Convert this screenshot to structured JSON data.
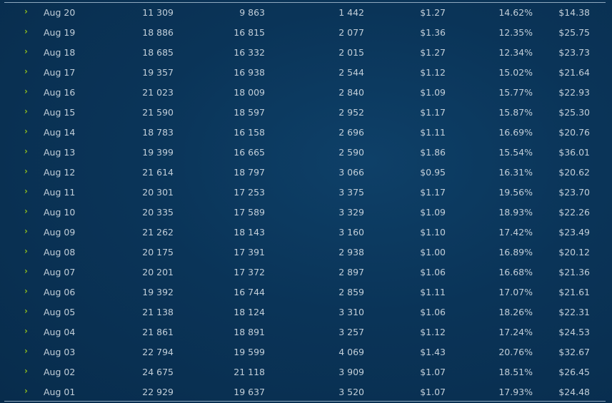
{
  "colors": {
    "background": "#0a3458",
    "text": "#c3cfd9",
    "chevron": "#8cbc1e",
    "divider": "#8fa9bf"
  },
  "rows": [
    {
      "date": "Aug 20",
      "c1": "11 309",
      "c2": "9 863",
      "c3": "1 442",
      "c4": "$1.27",
      "c5": "14.62%",
      "c6": "$14.38"
    },
    {
      "date": "Aug 19",
      "c1": "18 886",
      "c2": "16 815",
      "c3": "2 077",
      "c4": "$1.36",
      "c5": "12.35%",
      "c6": "$25.75"
    },
    {
      "date": "Aug 18",
      "c1": "18 685",
      "c2": "16 332",
      "c3": "2 015",
      "c4": "$1.27",
      "c5": "12.34%",
      "c6": "$23.73"
    },
    {
      "date": "Aug 17",
      "c1": "19 357",
      "c2": "16 938",
      "c3": "2 544",
      "c4": "$1.12",
      "c5": "15.02%",
      "c6": "$21.64"
    },
    {
      "date": "Aug 16",
      "c1": "21 023",
      "c2": "18 009",
      "c3": "2 840",
      "c4": "$1.09",
      "c5": "15.77%",
      "c6": "$22.93"
    },
    {
      "date": "Aug 15",
      "c1": "21 590",
      "c2": "18 597",
      "c3": "2 952",
      "c4": "$1.17",
      "c5": "15.87%",
      "c6": "$25.30"
    },
    {
      "date": "Aug 14",
      "c1": "18 783",
      "c2": "16 158",
      "c3": "2 696",
      "c4": "$1.11",
      "c5": "16.69%",
      "c6": "$20.76"
    },
    {
      "date": "Aug 13",
      "c1": "19 399",
      "c2": "16 665",
      "c3": "2 590",
      "c4": "$1.86",
      "c5": "15.54%",
      "c6": "$36.01"
    },
    {
      "date": "Aug 12",
      "c1": "21 614",
      "c2": "18 797",
      "c3": "3 066",
      "c4": "$0.95",
      "c5": "16.31%",
      "c6": "$20.62"
    },
    {
      "date": "Aug 11",
      "c1": "20 301",
      "c2": "17 253",
      "c3": "3 375",
      "c4": "$1.17",
      "c5": "19.56%",
      "c6": "$23.70"
    },
    {
      "date": "Aug 10",
      "c1": "20 335",
      "c2": "17 589",
      "c3": "3 329",
      "c4": "$1.09",
      "c5": "18.93%",
      "c6": "$22.26"
    },
    {
      "date": "Aug 09",
      "c1": "21 262",
      "c2": "18 143",
      "c3": "3 160",
      "c4": "$1.10",
      "c5": "17.42%",
      "c6": "$23.49"
    },
    {
      "date": "Aug 08",
      "c1": "20 175",
      "c2": "17 391",
      "c3": "2 938",
      "c4": "$1.00",
      "c5": "16.89%",
      "c6": "$20.12"
    },
    {
      "date": "Aug 07",
      "c1": "20 201",
      "c2": "17 372",
      "c3": "2 897",
      "c4": "$1.06",
      "c5": "16.68%",
      "c6": "$21.36"
    },
    {
      "date": "Aug 06",
      "c1": "19 392",
      "c2": "16 744",
      "c3": "2 859",
      "c4": "$1.11",
      "c5": "17.07%",
      "c6": "$21.61"
    },
    {
      "date": "Aug 05",
      "c1": "21 138",
      "c2": "18 124",
      "c3": "3 310",
      "c4": "$1.06",
      "c5": "18.26%",
      "c6": "$22.31"
    },
    {
      "date": "Aug 04",
      "c1": "21 861",
      "c2": "18 891",
      "c3": "3 257",
      "c4": "$1.12",
      "c5": "17.24%",
      "c6": "$24.53"
    },
    {
      "date": "Aug 03",
      "c1": "22 794",
      "c2": "19 599",
      "c3": "4 069",
      "c4": "$1.43",
      "c5": "20.76%",
      "c6": "$32.67"
    },
    {
      "date": "Aug 02",
      "c1": "24 675",
      "c2": "21 118",
      "c3": "3 909",
      "c4": "$1.07",
      "c5": "18.51%",
      "c6": "$26.45"
    },
    {
      "date": "Aug 01",
      "c1": "22 929",
      "c2": "19 637",
      "c3": "3 520",
      "c4": "$1.07",
      "c5": "17.93%",
      "c6": "$24.48"
    }
  ]
}
